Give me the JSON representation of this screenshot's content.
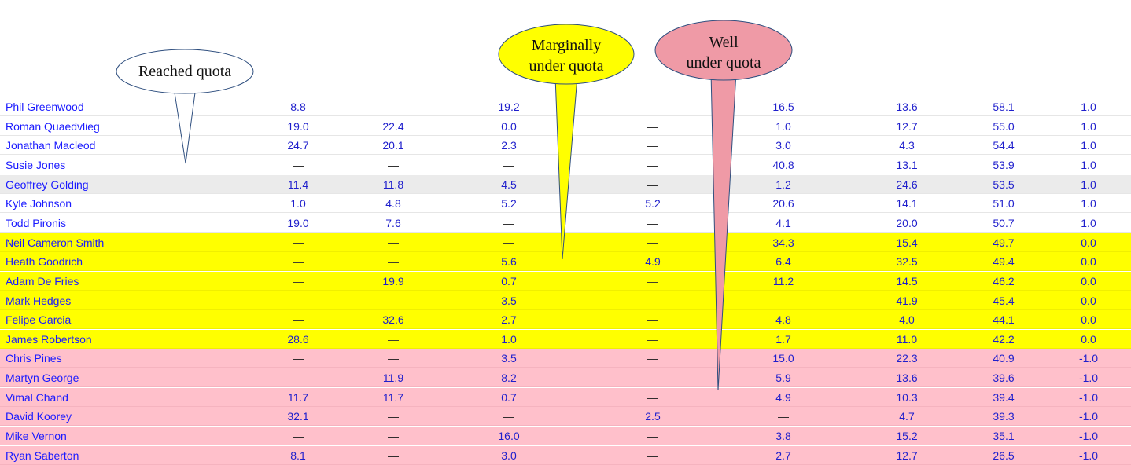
{
  "colors": {
    "link": "#1a1aff",
    "reached": "#ffffff",
    "marginal": "#ffff00",
    "well_under": "#ffc0cb",
    "hover_row": "#ebebeb",
    "callout_marginal": "#ffff00",
    "callout_well": "#ef9aa6"
  },
  "callouts": {
    "reached": "Reached quota",
    "marginal_line1": "Marginally",
    "marginal_line2": "under quota",
    "well_line1": "Well",
    "well_line2": "under quota"
  },
  "rows": [
    {
      "name": "Phil Greenwood",
      "style": "white",
      "values": [
        "8.8",
        "—",
        "19.2",
        "—",
        "16.5",
        "13.6",
        "58.1",
        "1.0"
      ]
    },
    {
      "name": "Roman Quaedvlieg",
      "style": "white",
      "values": [
        "19.0",
        "22.4",
        "0.0",
        "—",
        "1.0",
        "12.7",
        "55.0",
        "1.0"
      ]
    },
    {
      "name": "Jonathan Macleod",
      "style": "white",
      "values": [
        "24.7",
        "20.1",
        "2.3",
        "—",
        "3.0",
        "4.3",
        "54.4",
        "1.0"
      ]
    },
    {
      "name": "Susie Jones",
      "style": "white",
      "values": [
        "—",
        "—",
        "—",
        "—",
        "40.8",
        "13.1",
        "53.9",
        "1.0"
      ]
    },
    {
      "name": "Geoffrey Golding",
      "style": "gray",
      "values": [
        "11.4",
        "11.8",
        "4.5",
        "—",
        "1.2",
        "24.6",
        "53.5",
        "1.0"
      ]
    },
    {
      "name": "Kyle Johnson",
      "style": "white",
      "values": [
        "1.0",
        "4.8",
        "5.2",
        "5.2",
        "20.6",
        "14.1",
        "51.0",
        "1.0"
      ]
    },
    {
      "name": "Todd Pironis",
      "style": "white",
      "values": [
        "19.0",
        "7.6",
        "—",
        "—",
        "4.1",
        "20.0",
        "50.7",
        "1.0"
      ]
    },
    {
      "name": "Neil Cameron Smith",
      "style": "yellow",
      "values": [
        "—",
        "—",
        "—",
        "—",
        "34.3",
        "15.4",
        "49.7",
        "0.0"
      ]
    },
    {
      "name": "Heath Goodrich",
      "style": "yellow",
      "values": [
        "—",
        "—",
        "5.6",
        "4.9",
        "6.4",
        "32.5",
        "49.4",
        "0.0"
      ]
    },
    {
      "name": "Adam De Fries",
      "style": "yellow",
      "values": [
        "—",
        "19.9",
        "0.7",
        "—",
        "11.2",
        "14.5",
        "46.2",
        "0.0"
      ]
    },
    {
      "name": "Mark Hedges",
      "style": "yellow",
      "values": [
        "—",
        "—",
        "3.5",
        "—",
        "—",
        "41.9",
        "45.4",
        "0.0"
      ]
    },
    {
      "name": "Felipe Garcia",
      "style": "yellow",
      "values": [
        "—",
        "32.6",
        "2.7",
        "—",
        "4.8",
        "4.0",
        "44.1",
        "0.0"
      ]
    },
    {
      "name": "James Robertson",
      "style": "yellow",
      "values": [
        "28.6",
        "—",
        "1.0",
        "—",
        "1.7",
        "11.0",
        "42.2",
        "0.0"
      ]
    },
    {
      "name": "Chris Pines",
      "style": "pink",
      "values": [
        "—",
        "—",
        "3.5",
        "—",
        "15.0",
        "22.3",
        "40.9",
        "-1.0"
      ]
    },
    {
      "name": "Martyn George",
      "style": "pink",
      "values": [
        "—",
        "11.9",
        "8.2",
        "—",
        "5.9",
        "13.6",
        "39.6",
        "-1.0"
      ]
    },
    {
      "name": "Vimal Chand",
      "style": "pink",
      "values": [
        "11.7",
        "11.7",
        "0.7",
        "—",
        "4.9",
        "10.3",
        "39.4",
        "-1.0"
      ]
    },
    {
      "name": "David Koorey",
      "style": "pink",
      "values": [
        "32.1",
        "—",
        "—",
        "2.5",
        "—",
        "4.7",
        "39.3",
        "-1.0"
      ]
    },
    {
      "name": "Mike Vernon",
      "style": "pink",
      "values": [
        "—",
        "—",
        "16.0",
        "—",
        "3.8",
        "15.2",
        "35.1",
        "-1.0"
      ]
    },
    {
      "name": "Ryan Saberton",
      "style": "pink",
      "values": [
        "8.1",
        "—",
        "3.0",
        "—",
        "2.7",
        "12.7",
        "26.5",
        "-1.0"
      ]
    }
  ]
}
